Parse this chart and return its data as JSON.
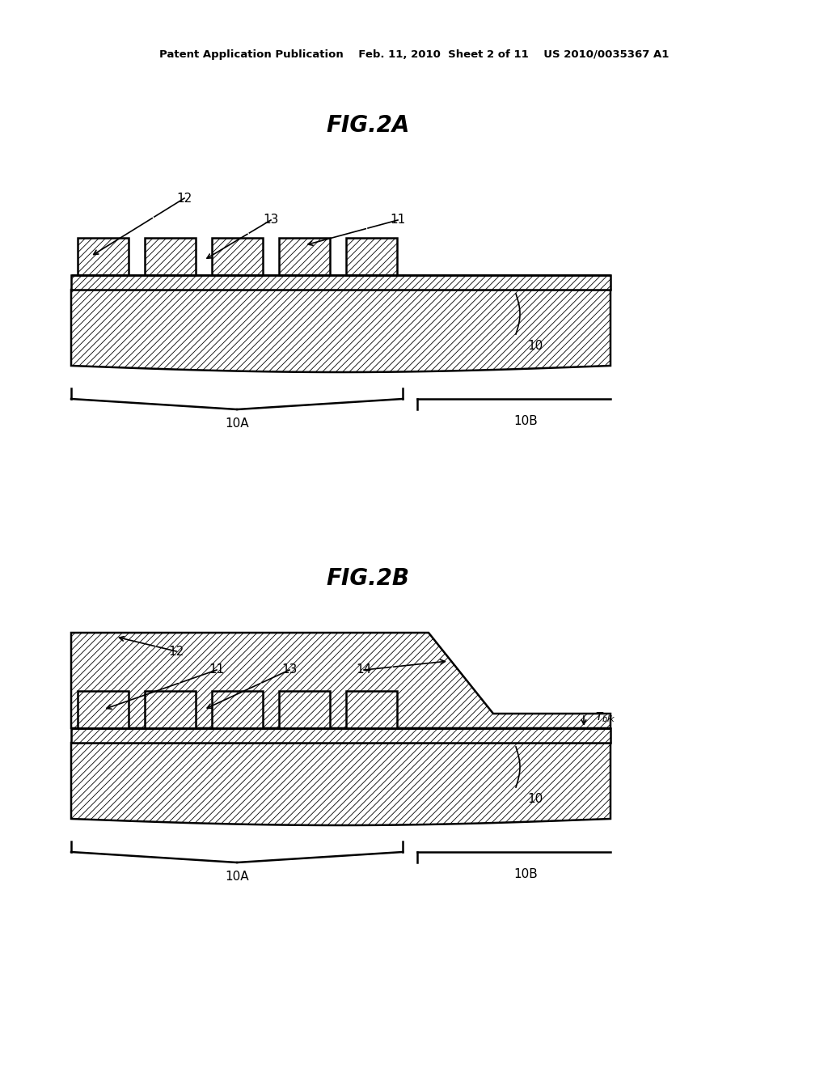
{
  "bg_color": "#ffffff",
  "header": "Patent Application Publication    Feb. 11, 2010  Sheet 2 of 11    US 2010/0035367 A1",
  "fig2a_label": "FIG.2A",
  "fig2b_label": "FIG.2B"
}
